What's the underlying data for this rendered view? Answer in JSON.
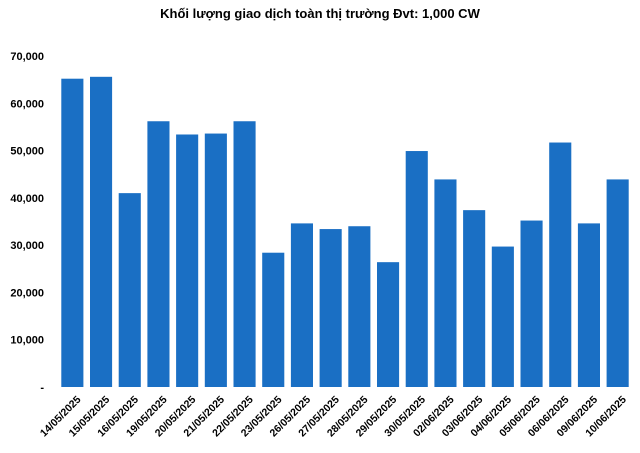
{
  "chart_data": {
    "type": "bar",
    "title": "Khối lượng giao dịch toàn thị trường Đvt: 1,000 CW",
    "xlabel": "",
    "ylabel": "",
    "ylim": [
      0,
      70000
    ],
    "yticks": [
      0,
      10000,
      20000,
      30000,
      40000,
      50000,
      60000,
      70000
    ],
    "ytick_labels": [
      "-",
      "10,000",
      "20,000",
      "30,000",
      "40,000",
      "50,000",
      "60,000",
      "70,000"
    ],
    "grid": false,
    "legend": "none",
    "bar_color": "#1a6fc4",
    "categories": [
      "14/05/2025",
      "15/05/2025",
      "16/05/2025",
      "19/05/2025",
      "20/05/2025",
      "21/05/2025",
      "22/05/2025",
      "23/05/2025",
      "26/05/2025",
      "27/05/2025",
      "28/05/2025",
      "29/05/2025",
      "30/05/2025",
      "02/06/2025",
      "03/06/2025",
      "04/06/2025",
      "05/06/2025",
      "06/06/2025",
      "09/06/2025",
      "10/06/2025"
    ],
    "values": [
      65200,
      65600,
      41000,
      56200,
      53400,
      53600,
      56200,
      28400,
      34600,
      33400,
      34000,
      26400,
      49900,
      43900,
      37400,
      29700,
      35200,
      51700,
      34600,
      43900
    ]
  }
}
